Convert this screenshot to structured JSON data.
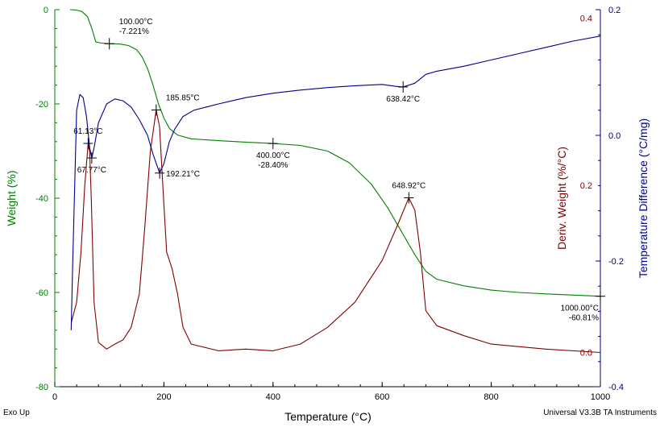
{
  "chart_data": {
    "type": "line",
    "title": "",
    "xlabel": "Temperature (°C)",
    "xlim": [
      0,
      1000
    ],
    "x_ticks": [
      "0",
      "200",
      "400",
      "600",
      "800",
      "1000"
    ],
    "grid": false,
    "axes": {
      "weight": {
        "label": "Weight (%)",
        "side": "left",
        "color": "#008000",
        "ylim": [
          -80,
          0
        ],
        "ticks": [
          "0",
          "-20",
          "-40",
          "-60",
          "-80"
        ]
      },
      "deriv_weight": {
        "label": "Deriv. Weight (%/°C)",
        "side": "inner-right",
        "color": "#800000",
        "ylim": [
          -0.041,
          0.41
        ],
        "ticks": [
          "0.4",
          "0.2",
          "0.0"
        ]
      },
      "temp_diff": {
        "label": "Temperature Difference (°C/mg)",
        "side": "right",
        "color": "#00008B",
        "ylim": [
          -0.4,
          0.2
        ],
        "ticks": [
          "0.2",
          "0.0",
          "-0.2",
          "-0.4"
        ]
      }
    },
    "series": [
      {
        "axis": "weight",
        "color": "#008000",
        "points": [
          [
            28,
            0
          ],
          [
            40,
            -0.1
          ],
          [
            50,
            -0.4
          ],
          [
            60,
            -1.5
          ],
          [
            68,
            -4
          ],
          [
            75,
            -6.8
          ],
          [
            85,
            -7.1
          ],
          [
            100,
            -7.22
          ],
          [
            120,
            -7.3
          ],
          [
            135,
            -7.6
          ],
          [
            150,
            -8.5
          ],
          [
            160,
            -10
          ],
          [
            170,
            -12.5
          ],
          [
            180,
            -16
          ],
          [
            190,
            -20
          ],
          [
            200,
            -23
          ],
          [
            210,
            -25.2
          ],
          [
            225,
            -26.6
          ],
          [
            250,
            -27.4
          ],
          [
            300,
            -27.8
          ],
          [
            350,
            -28.1
          ],
          [
            400,
            -28.4
          ],
          [
            450,
            -28.8
          ],
          [
            500,
            -30
          ],
          [
            540,
            -32.5
          ],
          [
            580,
            -37
          ],
          [
            610,
            -42
          ],
          [
            640,
            -48
          ],
          [
            660,
            -52
          ],
          [
            680,
            -55.5
          ],
          [
            700,
            -57.2
          ],
          [
            750,
            -58.6
          ],
          [
            800,
            -59.5
          ],
          [
            850,
            -60
          ],
          [
            900,
            -60.3
          ],
          [
            1000,
            -60.81
          ]
        ]
      },
      {
        "axis": "deriv_weight",
        "color": "#800000",
        "points": [
          [
            30,
            0.035
          ],
          [
            40,
            0.06
          ],
          [
            48,
            0.12
          ],
          [
            55,
            0.2
          ],
          [
            61.13,
            0.25
          ],
          [
            64,
            0.24
          ],
          [
            67,
            0.18
          ],
          [
            72,
            0.06
          ],
          [
            80,
            0.012
          ],
          [
            95,
            0.004
          ],
          [
            110,
            0.01
          ],
          [
            125,
            0.015
          ],
          [
            140,
            0.03
          ],
          [
            155,
            0.07
          ],
          [
            165,
            0.15
          ],
          [
            175,
            0.24
          ],
          [
            185.85,
            0.29
          ],
          [
            192,
            0.27
          ],
          [
            198,
            0.2
          ],
          [
            205,
            0.12
          ],
          [
            215,
            0.1
          ],
          [
            225,
            0.07
          ],
          [
            235,
            0.03
          ],
          [
            250,
            0.01
          ],
          [
            300,
            0.002
          ],
          [
            350,
            0.004
          ],
          [
            400,
            0.002
          ],
          [
            450,
            0.01
          ],
          [
            500,
            0.03
          ],
          [
            550,
            0.06
          ],
          [
            600,
            0.11
          ],
          [
            630,
            0.155
          ],
          [
            648.92,
            0.185
          ],
          [
            660,
            0.17
          ],
          [
            670,
            0.12
          ],
          [
            680,
            0.05
          ],
          [
            700,
            0.032
          ],
          [
            750,
            0.02
          ],
          [
            800,
            0.01
          ],
          [
            900,
            0.004
          ],
          [
            1000,
            0.0
          ]
        ]
      },
      {
        "axis": "temp_diff",
        "color": "#00008B",
        "points": [
          [
            30,
            -0.31
          ],
          [
            33,
            -0.2
          ],
          [
            40,
            0.04
          ],
          [
            46,
            0.065
          ],
          [
            52,
            0.06
          ],
          [
            58,
            0.03
          ],
          [
            64,
            -0.02
          ],
          [
            67.77,
            -0.036
          ],
          [
            72,
            -0.02
          ],
          [
            80,
            0.02
          ],
          [
            95,
            0.05
          ],
          [
            110,
            0.058
          ],
          [
            125,
            0.055
          ],
          [
            140,
            0.045
          ],
          [
            155,
            0.025
          ],
          [
            170,
            0.0
          ],
          [
            180,
            -0.03
          ],
          [
            192.21,
            -0.06
          ],
          [
            200,
            -0.045
          ],
          [
            210,
            -0.01
          ],
          [
            220,
            0.01
          ],
          [
            235,
            0.03
          ],
          [
            255,
            0.04
          ],
          [
            300,
            0.05
          ],
          [
            350,
            0.06
          ],
          [
            400,
            0.067
          ],
          [
            450,
            0.072
          ],
          [
            500,
            0.076
          ],
          [
            550,
            0.079
          ],
          [
            600,
            0.081
          ],
          [
            625,
            0.078
          ],
          [
            638.42,
            0.077
          ],
          [
            660,
            0.083
          ],
          [
            680,
            0.097
          ],
          [
            700,
            0.102
          ],
          [
            750,
            0.11
          ],
          [
            800,
            0.12
          ],
          [
            850,
            0.13
          ],
          [
            900,
            0.14
          ],
          [
            950,
            0.15
          ],
          [
            1000,
            0.158
          ]
        ]
      }
    ],
    "markers": [
      {
        "axis": "weight",
        "x": 100,
        "y": -7.22,
        "lines": [
          "100.00°C",
          "-7.221%"
        ],
        "anchor": "right-above"
      },
      {
        "axis": "weight",
        "x": 400,
        "y": -28.4,
        "lines": [
          "400.00°C",
          "-28.40%"
        ],
        "anchor": "below"
      },
      {
        "axis": "weight",
        "x": 1000,
        "y": -60.81,
        "lines": [
          "1000.00°C",
          "-60.81%"
        ],
        "anchor": "below-left"
      },
      {
        "axis": "deriv_weight",
        "x": 61.13,
        "y": 0.25,
        "lines": [
          "61.13°C"
        ],
        "anchor": "above"
      },
      {
        "axis": "deriv_weight",
        "x": 185.85,
        "y": 0.29,
        "lines": [
          "185.85°C"
        ],
        "anchor": "right-above"
      },
      {
        "axis": "deriv_weight",
        "x": 648.92,
        "y": 0.185,
        "lines": [
          "648.92°C"
        ],
        "anchor": "above"
      },
      {
        "axis": "temp_diff",
        "x": 67.77,
        "y": -0.036,
        "lines": [
          "67.77°C"
        ],
        "anchor": "below"
      },
      {
        "axis": "temp_diff",
        "x": 192.21,
        "y": -0.06,
        "lines": [
          "192.21°C"
        ],
        "anchor": "right-below"
      },
      {
        "axis": "temp_diff",
        "x": 638.42,
        "y": 0.077,
        "lines": [
          "638.42°C"
        ],
        "anchor": "below"
      }
    ]
  },
  "footer": {
    "left": "Exo Up",
    "right": "Universal V3.3B TA Instruments"
  }
}
